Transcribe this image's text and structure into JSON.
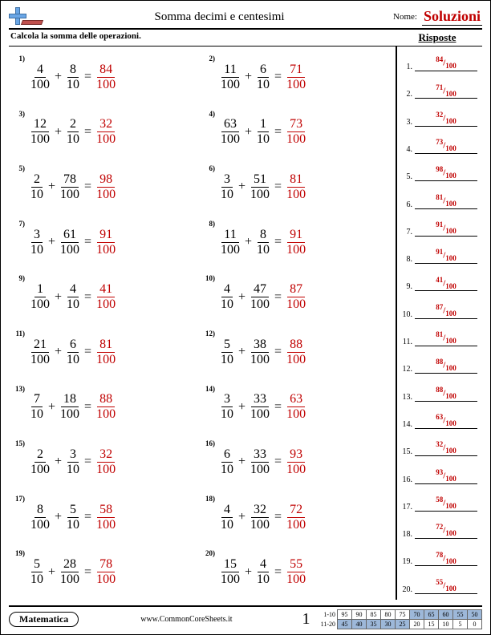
{
  "header": {
    "title": "Somma decimi e centesimi",
    "name_label": "Nome:",
    "solutions": "Soluzioni"
  },
  "instructions": "Calcola la somma delle operazioni.",
  "answers_header": "Risposte",
  "colors": {
    "answer": "#c00000",
    "text": "#000000",
    "logo_plus": "#6aa6e6",
    "logo_bar": "#c0504d",
    "score_highlight": "#9db8d9"
  },
  "problems": [
    {
      "n": "1",
      "a_num": "4",
      "a_den": "100",
      "b_num": "8",
      "b_den": "10",
      "r_num": "84",
      "r_den": "100"
    },
    {
      "n": "2",
      "a_num": "11",
      "a_den": "100",
      "b_num": "6",
      "b_den": "10",
      "r_num": "71",
      "r_den": "100"
    },
    {
      "n": "3",
      "a_num": "12",
      "a_den": "100",
      "b_num": "2",
      "b_den": "10",
      "r_num": "32",
      "r_den": "100"
    },
    {
      "n": "4",
      "a_num": "63",
      "a_den": "100",
      "b_num": "1",
      "b_den": "10",
      "r_num": "73",
      "r_den": "100"
    },
    {
      "n": "5",
      "a_num": "2",
      "a_den": "10",
      "b_num": "78",
      "b_den": "100",
      "r_num": "98",
      "r_den": "100"
    },
    {
      "n": "6",
      "a_num": "3",
      "a_den": "10",
      "b_num": "51",
      "b_den": "100",
      "r_num": "81",
      "r_den": "100"
    },
    {
      "n": "7",
      "a_num": "3",
      "a_den": "10",
      "b_num": "61",
      "b_den": "100",
      "r_num": "91",
      "r_den": "100"
    },
    {
      "n": "8",
      "a_num": "11",
      "a_den": "100",
      "b_num": "8",
      "b_den": "10",
      "r_num": "91",
      "r_den": "100"
    },
    {
      "n": "9",
      "a_num": "1",
      "a_den": "100",
      "b_num": "4",
      "b_den": "10",
      "r_num": "41",
      "r_den": "100"
    },
    {
      "n": "10",
      "a_num": "4",
      "a_den": "10",
      "b_num": "47",
      "b_den": "100",
      "r_num": "87",
      "r_den": "100"
    },
    {
      "n": "11",
      "a_num": "21",
      "a_den": "100",
      "b_num": "6",
      "b_den": "10",
      "r_num": "81",
      "r_den": "100"
    },
    {
      "n": "12",
      "a_num": "5",
      "a_den": "10",
      "b_num": "38",
      "b_den": "100",
      "r_num": "88",
      "r_den": "100"
    },
    {
      "n": "13",
      "a_num": "7",
      "a_den": "10",
      "b_num": "18",
      "b_den": "100",
      "r_num": "88",
      "r_den": "100"
    },
    {
      "n": "14",
      "a_num": "3",
      "a_den": "10",
      "b_num": "33",
      "b_den": "100",
      "r_num": "63",
      "r_den": "100"
    },
    {
      "n": "15",
      "a_num": "2",
      "a_den": "100",
      "b_num": "3",
      "b_den": "10",
      "r_num": "32",
      "r_den": "100"
    },
    {
      "n": "16",
      "a_num": "6",
      "a_den": "10",
      "b_num": "33",
      "b_den": "100",
      "r_num": "93",
      "r_den": "100"
    },
    {
      "n": "17",
      "a_num": "8",
      "a_den": "100",
      "b_num": "5",
      "b_den": "10",
      "r_num": "58",
      "r_den": "100"
    },
    {
      "n": "18",
      "a_num": "4",
      "a_den": "10",
      "b_num": "32",
      "b_den": "100",
      "r_num": "72",
      "r_den": "100"
    },
    {
      "n": "19",
      "a_num": "5",
      "a_den": "10",
      "b_num": "28",
      "b_den": "100",
      "r_num": "78",
      "r_den": "100"
    },
    {
      "n": "20",
      "a_num": "15",
      "a_den": "100",
      "b_num": "4",
      "b_den": "10",
      "r_num": "55",
      "r_den": "100"
    }
  ],
  "footer": {
    "subject": "Matematica",
    "site": "www.CommonCoreSheets.it",
    "page": "1"
  },
  "score": {
    "row1_label": "1-10",
    "row2_label": "11-20",
    "row1": [
      "95",
      "90",
      "85",
      "80",
      "75",
      "70",
      "65",
      "60",
      "55",
      "50"
    ],
    "row2": [
      "45",
      "40",
      "35",
      "30",
      "25",
      "20",
      "15",
      "10",
      "5",
      "0"
    ],
    "row1_hl_from": 5,
    "row2_hl_to": 4
  }
}
